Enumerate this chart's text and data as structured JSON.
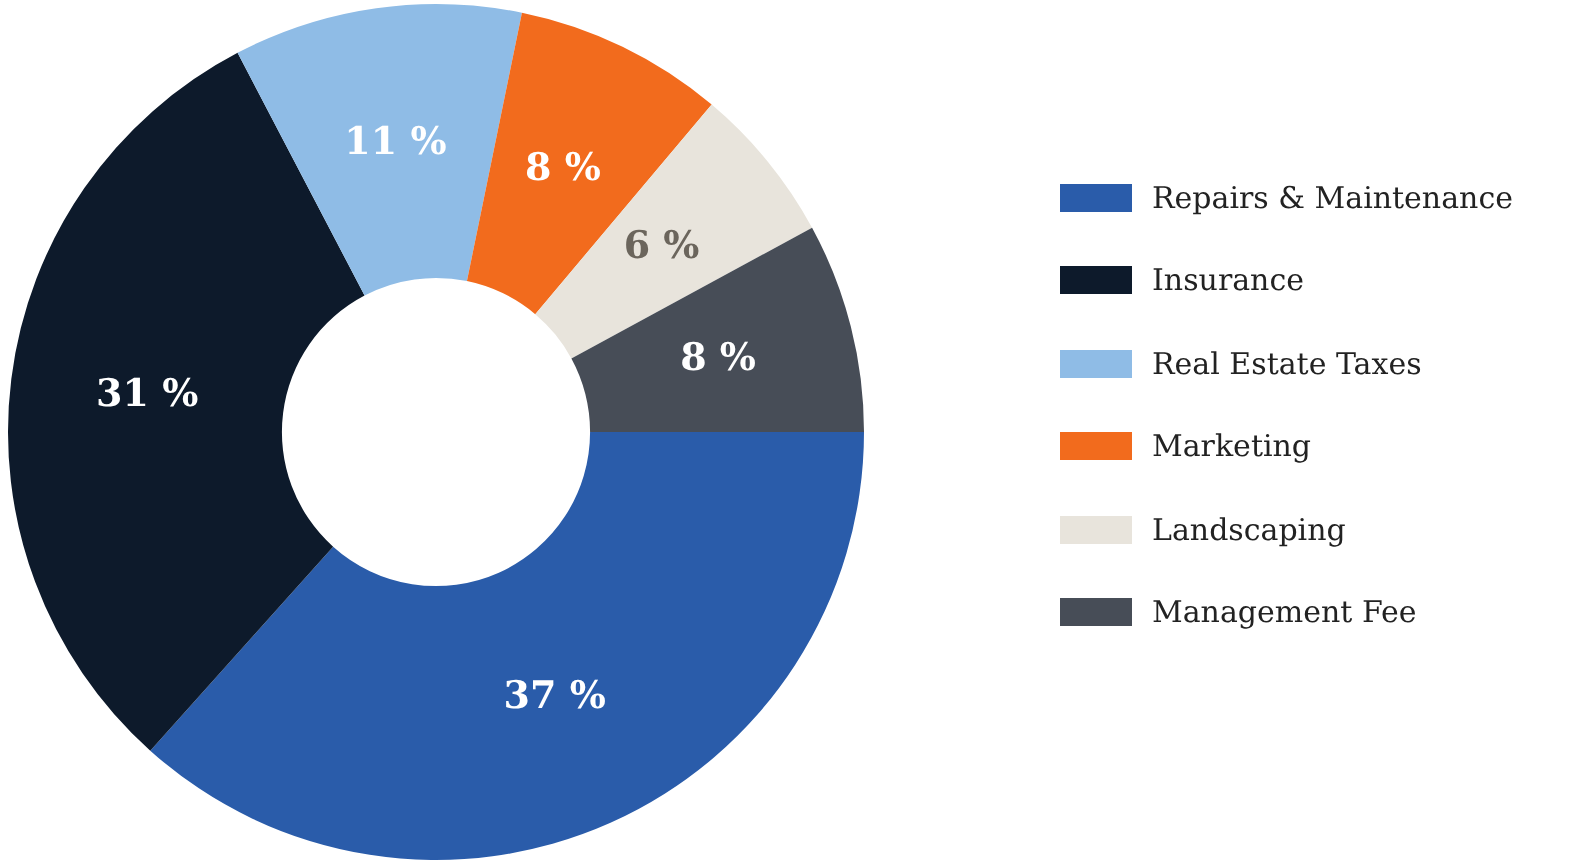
{
  "chart_data": {
    "type": "donut",
    "categories": [
      "Repairs & Maintenance",
      "Insurance",
      "Real Estate Taxes",
      "Marketing",
      "Landscaping",
      "Management Fee"
    ],
    "values": [
      37,
      31,
      11,
      8,
      6,
      8
    ],
    "colors": [
      "#2a5caa",
      "#0d1a2b",
      "#8fbce6",
      "#f26b1d",
      "#e8e4dc",
      "#474d57"
    ],
    "value_labels": [
      "37 %",
      "31 %",
      "11 %",
      "8 %",
      "6 %",
      "8 %"
    ],
    "legend": "right"
  }
}
